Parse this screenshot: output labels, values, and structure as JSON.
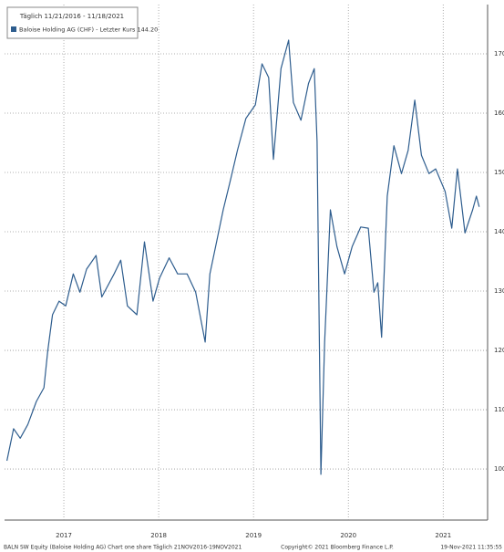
{
  "chart_data": {
    "type": "line",
    "legend_title": "Täglich 11/21/2016 - 11/18/2021",
    "footer_left": "BALN SW Equity (Baloise Holding AG) Chart one share  Täglich 21NOV2016-19NOV2021",
    "footer_center": "Copyright© 2021 Bloomberg Finance L.P.",
    "footer_right": "19-Nov-2021 11:35:55",
    "x": [
      2016.9,
      2016.97,
      2017.04,
      2017.12,
      2017.21,
      2017.29,
      2017.33,
      2017.38,
      2017.45,
      2017.52,
      2017.6,
      2017.67,
      2017.74,
      2017.84,
      2017.9,
      2018.03,
      2018.1,
      2018.17,
      2018.27,
      2018.35,
      2018.44,
      2018.51,
      2018.61,
      2018.7,
      2018.8,
      2018.89,
      2018.99,
      2019.04,
      2019.12,
      2019.18,
      2019.25,
      2019.33,
      2019.42,
      2019.52,
      2019.59,
      2019.66,
      2019.71,
      2019.79,
      2019.87,
      2019.92,
      2020.0,
      2020.08,
      2020.14,
      2020.17,
      2020.21,
      2020.25,
      2020.31,
      2020.38,
      2020.46,
      2020.54,
      2020.63,
      2020.71,
      2020.77,
      2020.81,
      2020.85,
      2020.91,
      2020.98,
      2021.06,
      2021.13,
      2021.2,
      2021.27,
      2021.35,
      2021.42,
      2021.52,
      2021.59,
      2021.65,
      2021.73,
      2021.81,
      2021.85,
      2021.88
    ],
    "series": [
      {
        "name": "Baloise Holding AG (CHF) - Letzter Kurs 144.20",
        "color": "#2e5d8e",
        "values": [
          101.4,
          106.8,
          105.2,
          107.5,
          111.4,
          113.7,
          119.8,
          126,
          128.3,
          127.5,
          132.9,
          129.8,
          133.7,
          136,
          129,
          132.9,
          135.2,
          127.5,
          126,
          138.3,
          128.3,
          132.2,
          135.6,
          132.9,
          132.9,
          129.8,
          121.4,
          132.9,
          139,
          143.7,
          148.3,
          153.7,
          159.1,
          161.4,
          168.3,
          166,
          152.2,
          167.5,
          172.3,
          161.8,
          158.8,
          165,
          167.5,
          155.2,
          99.1,
          121.4,
          143.7,
          137.5,
          132.9,
          137.5,
          140.8,
          140.6,
          129.8,
          131.4,
          122.2,
          146,
          154.5,
          149.8,
          153.7,
          162.2,
          152.9,
          149.8,
          150.6,
          146.8,
          140.6,
          150.6,
          139.8,
          143.7,
          146,
          144.2
        ]
      }
    ],
    "xlim": [
      2016.875,
      2021.92
    ],
    "xticks": [
      {
        "value": 2017.5,
        "label": "2017"
      },
      {
        "value": 2018.5,
        "label": "2018"
      },
      {
        "value": 2019.5,
        "label": "2019"
      },
      {
        "value": 2020.5,
        "label": "2020"
      },
      {
        "value": 2021.5,
        "label": "2021"
      }
    ],
    "ylim": [
      91.4,
      178.3
    ],
    "yticks": [
      100,
      110,
      120,
      130,
      140,
      150,
      160,
      170
    ],
    "grid": true
  }
}
